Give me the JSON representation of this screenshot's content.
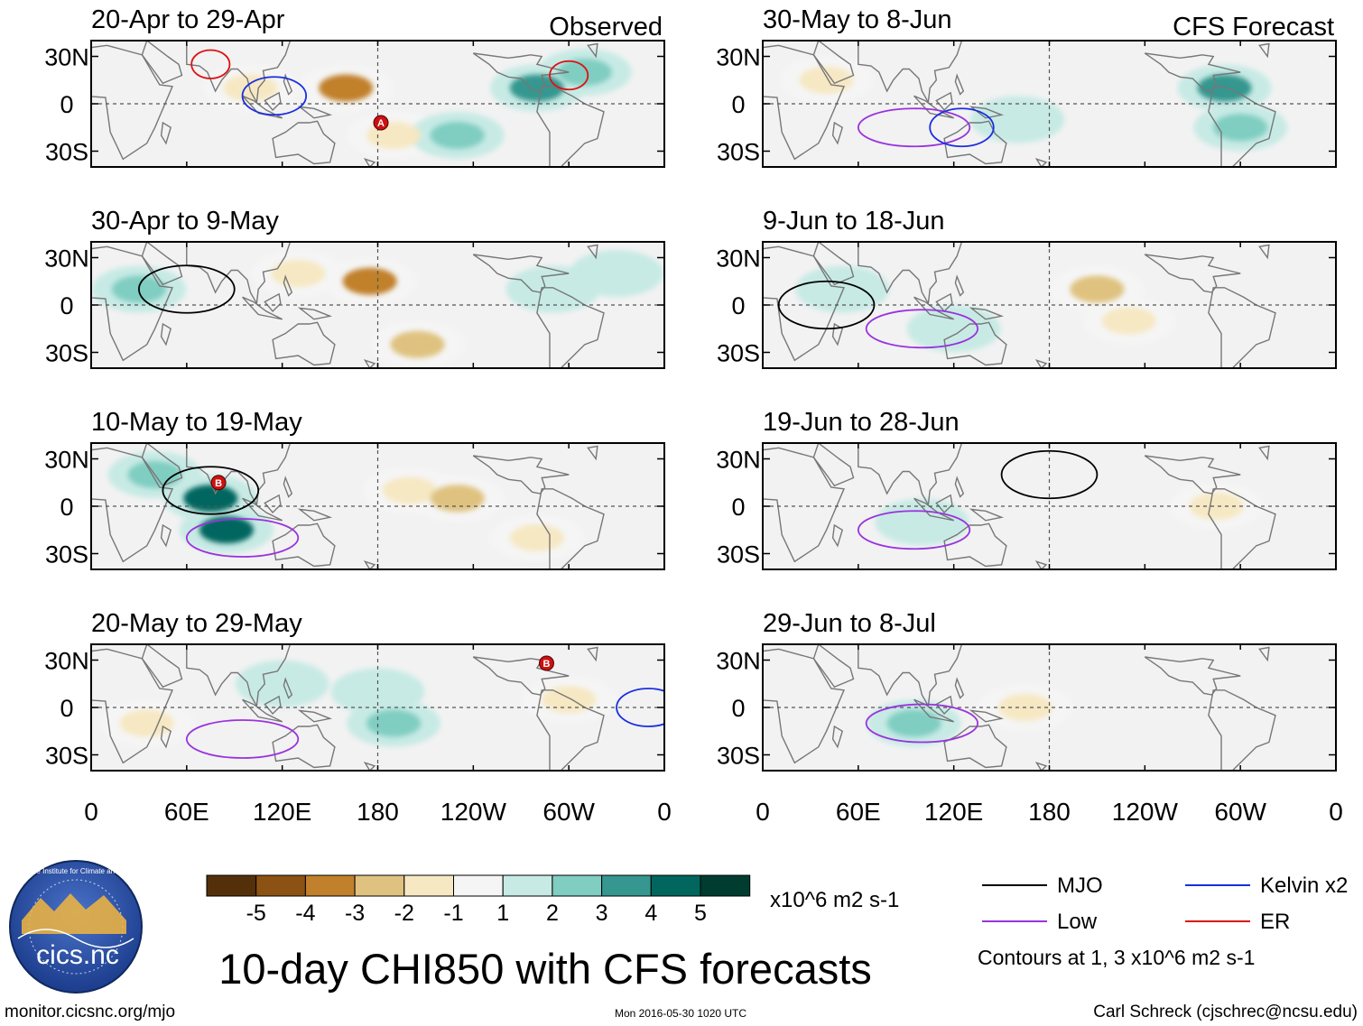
{
  "figure": {
    "title": "10-day CHI850 with CFS forecasts",
    "observed_label": "Observed",
    "forecast_label": "CFS Forecast",
    "source_url": "monitor.cicsnc.org/mjo",
    "timestamp": "Mon 2016-05-30 1020 UTC",
    "credit": "Carl Schreck (cjschrec@ncsu.edu)",
    "logo_text": "cics.nc",
    "logo_ring_text": "Cooperative Institute for Climate and Satellites",
    "units": "x10^6 m2 s-1",
    "contour_note": "Contours at 1, 3 x10^6 m2 s-1"
  },
  "colors": {
    "mjo": "#000000",
    "low": "#9933dd",
    "kelvin": "#1a2ee0",
    "er": "#dd1111",
    "land": "#777777",
    "background": "#f2f2f2"
  },
  "legend": {
    "lines": [
      {
        "key": "mjo",
        "label": "MJO",
        "color": "#000000"
      },
      {
        "key": "kelvin",
        "label": "Kelvin x2",
        "color": "#1a2ee0"
      },
      {
        "key": "low",
        "label": "Low",
        "color": "#9933dd"
      },
      {
        "key": "er",
        "label": "ER",
        "color": "#dd1111"
      }
    ]
  },
  "colorbar": {
    "colors": [
      "#54300a",
      "#8c5213",
      "#c1802c",
      "#dfc27f",
      "#f6e8c3",
      "#f5f5f5",
      "#c7eae5",
      "#80cdc1",
      "#35978f",
      "#01665e",
      "#003c30"
    ],
    "labels": [
      "-5",
      "-4",
      "-3",
      "-2",
      "-1",
      "1",
      "2",
      "3",
      "4",
      "5"
    ]
  },
  "chart_data": {
    "type": "map",
    "variable": "10-day CHI850",
    "longitude_ticks": [
      "0",
      "60E",
      "120E",
      "180",
      "120W",
      "60W",
      "0"
    ],
    "latitude_ticks": [
      "30N",
      "0",
      "30S"
    ],
    "lon_range": [
      0,
      360
    ],
    "lat_range": [
      -40,
      40
    ],
    "panels": [
      {
        "column": "Observed",
        "period": "20-Apr to 29-Apr",
        "anomalies": [
          {
            "lon": 160,
            "lat": 10,
            "value": -3.5
          },
          {
            "lon": 100,
            "lat": 10,
            "value": -2
          },
          {
            "lon": 190,
            "lat": -20,
            "value": -1.5
          },
          {
            "lon": 280,
            "lat": 10,
            "value": 3
          },
          {
            "lon": 230,
            "lat": -20,
            "value": 2
          },
          {
            "lon": 310,
            "lat": 20,
            "value": 2
          }
        ],
        "contours": [
          {
            "type": "kelvin",
            "lon": 115,
            "lat": 5
          },
          {
            "type": "er",
            "lon": 75,
            "lat": 25
          },
          {
            "type": "er",
            "lon": 300,
            "lat": 18
          }
        ],
        "storms": [
          {
            "label": "A",
            "lon": 182,
            "lat": -12
          }
        ]
      },
      {
        "column": "Observed",
        "period": "30-Apr to 9-May",
        "anomalies": [
          {
            "lon": 175,
            "lat": 15,
            "value": -3.5
          },
          {
            "lon": 205,
            "lat": -25,
            "value": -3
          },
          {
            "lon": 130,
            "lat": 20,
            "value": -2
          },
          {
            "lon": 30,
            "lat": 10,
            "value": 2.5
          },
          {
            "lon": 290,
            "lat": 10,
            "value": 1.5
          },
          {
            "lon": 330,
            "lat": 20,
            "value": 1.5
          }
        ],
        "contours": [
          {
            "type": "mjo",
            "lon": 60,
            "lat": 10
          }
        ],
        "storms": []
      },
      {
        "column": "Observed",
        "period": "10-May to 19-May",
        "anomalies": [
          {
            "lon": 75,
            "lat": 5,
            "value": 4
          },
          {
            "lon": 85,
            "lat": -15,
            "value": 4
          },
          {
            "lon": 40,
            "lat": 20,
            "value": 2
          },
          {
            "lon": 200,
            "lat": 10,
            "value": -2
          },
          {
            "lon": 230,
            "lat": 5,
            "value": -2.5
          },
          {
            "lon": 280,
            "lat": -20,
            "value": -1.5
          }
        ],
        "contours": [
          {
            "type": "mjo",
            "lon": 75,
            "lat": 10
          },
          {
            "type": "low",
            "lon": 95,
            "lat": -20
          }
        ],
        "storms": [
          {
            "label": "B",
            "lon": 80,
            "lat": 15
          }
        ]
      },
      {
        "column": "Observed",
        "period": "20-May to 29-May",
        "anomalies": [
          {
            "lon": 120,
            "lat": 15,
            "value": 1.5
          },
          {
            "lon": 180,
            "lat": 10,
            "value": 1.5
          },
          {
            "lon": 190,
            "lat": -10,
            "value": 2.5
          },
          {
            "lon": 35,
            "lat": -10,
            "value": -2
          },
          {
            "lon": 300,
            "lat": 5,
            "value": -2
          }
        ],
        "contours": [
          {
            "type": "low",
            "lon": 95,
            "lat": -20
          },
          {
            "type": "kelvin",
            "lon": 350,
            "lat": 0
          }
        ],
        "storms": [
          {
            "label": "B",
            "lon": 286,
            "lat": 28
          }
        ]
      },
      {
        "column": "CFS Forecast",
        "period": "30-May to 8-Jun",
        "anomalies": [
          {
            "lon": 40,
            "lat": 15,
            "value": -2
          },
          {
            "lon": 160,
            "lat": -10,
            "value": 1
          },
          {
            "lon": 290,
            "lat": 10,
            "value": 3.5
          },
          {
            "lon": 300,
            "lat": -15,
            "value": 2
          }
        ],
        "contours": [
          {
            "type": "low",
            "lon": 95,
            "lat": -15
          },
          {
            "type": "kelvin",
            "lon": 125,
            "lat": -15
          }
        ],
        "storms": []
      },
      {
        "column": "CFS Forecast",
        "period": "9-Jun to 18-Jun",
        "anomalies": [
          {
            "lon": 210,
            "lat": 10,
            "value": -3
          },
          {
            "lon": 230,
            "lat": -10,
            "value": -1.5
          },
          {
            "lon": 50,
            "lat": 10,
            "value": 1.5
          },
          {
            "lon": 120,
            "lat": -15,
            "value": 1
          }
        ],
        "contours": [
          {
            "type": "mjo",
            "lon": 40,
            "lat": 0
          },
          {
            "type": "low",
            "lon": 100,
            "lat": -15
          }
        ],
        "storms": []
      },
      {
        "column": "CFS Forecast",
        "period": "19-Jun to 28-Jun",
        "anomalies": [
          {
            "lon": 285,
            "lat": 0,
            "value": -2
          },
          {
            "lon": 100,
            "lat": -10,
            "value": 1
          }
        ],
        "contours": [
          {
            "type": "mjo",
            "lon": 180,
            "lat": 20
          },
          {
            "type": "low",
            "lon": 95,
            "lat": -15
          }
        ],
        "storms": []
      },
      {
        "column": "CFS Forecast",
        "period": "29-Jun to 8-Jul",
        "anomalies": [
          {
            "lon": 95,
            "lat": -10,
            "value": 2
          },
          {
            "lon": 165,
            "lat": 0,
            "value": -1.5
          }
        ],
        "contours": [
          {
            "type": "low",
            "lon": 100,
            "lat": -10
          }
        ],
        "storms": []
      }
    ]
  }
}
